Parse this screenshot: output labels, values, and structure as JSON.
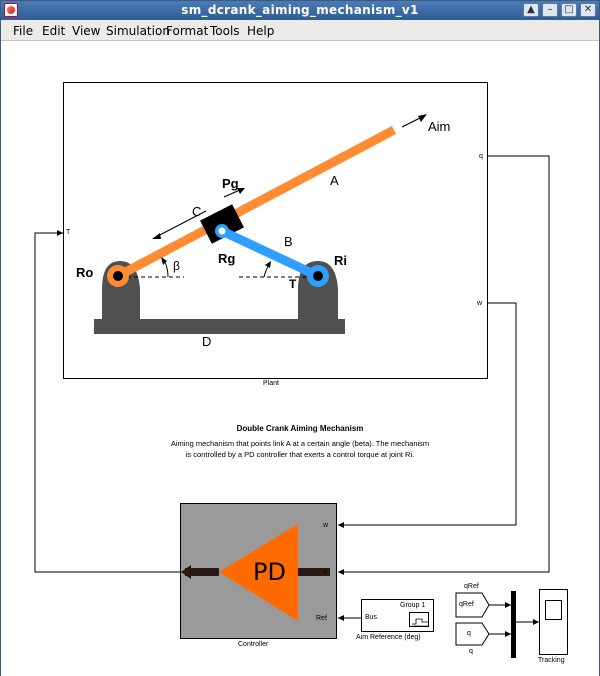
{
  "window": {
    "title": "sm_dcrank_aiming_mechanism_v1",
    "buttons": {
      "up": "▲",
      "minimize": "–",
      "maximize": "□",
      "close": "✕"
    }
  },
  "menu": {
    "items": [
      "File",
      "Edit",
      "View",
      "Simulation",
      "Format",
      "Tools",
      "Help"
    ]
  },
  "plant": {
    "label": "Plant",
    "in_port": "T",
    "out_ports": {
      "q": "q",
      "w": "w"
    },
    "diagram": {
      "aim": "Aim",
      "A": "A",
      "B": "B",
      "C": "C",
      "D": "D",
      "Pg": "Pg",
      "Rg": "Rg",
      "Ro": "Ro",
      "Ri": "Ri",
      "beta": "β",
      "T": "T"
    }
  },
  "description": {
    "title": "Double Crank Aiming Mechanism",
    "line1": "Aiming mechanism that points link A at a certain angle (beta).  The mechanism",
    "line2": "is controlled by a PD controller that exerts a control torque at joint Ri."
  },
  "controller": {
    "label": "Controller",
    "symbol": "PD",
    "in_ports": {
      "w": "w",
      "q": "q",
      "ref": "Ref"
    }
  },
  "aim_reference": {
    "label": "Aim Reference (deg)",
    "bus": "Bus",
    "group": "Group 1"
  },
  "tracking": {
    "from_qref": "qRef",
    "from_q": "q",
    "label_top": "qRef",
    "label_bottom": "q",
    "scope_label": "Tracking"
  },
  "colors": {
    "link_orange": "#ff8c33",
    "link_blue": "#2e9fff",
    "pd_orange": "#ff6a00",
    "base_gray": "#505050",
    "controller_gray": "#9a9a9a"
  }
}
